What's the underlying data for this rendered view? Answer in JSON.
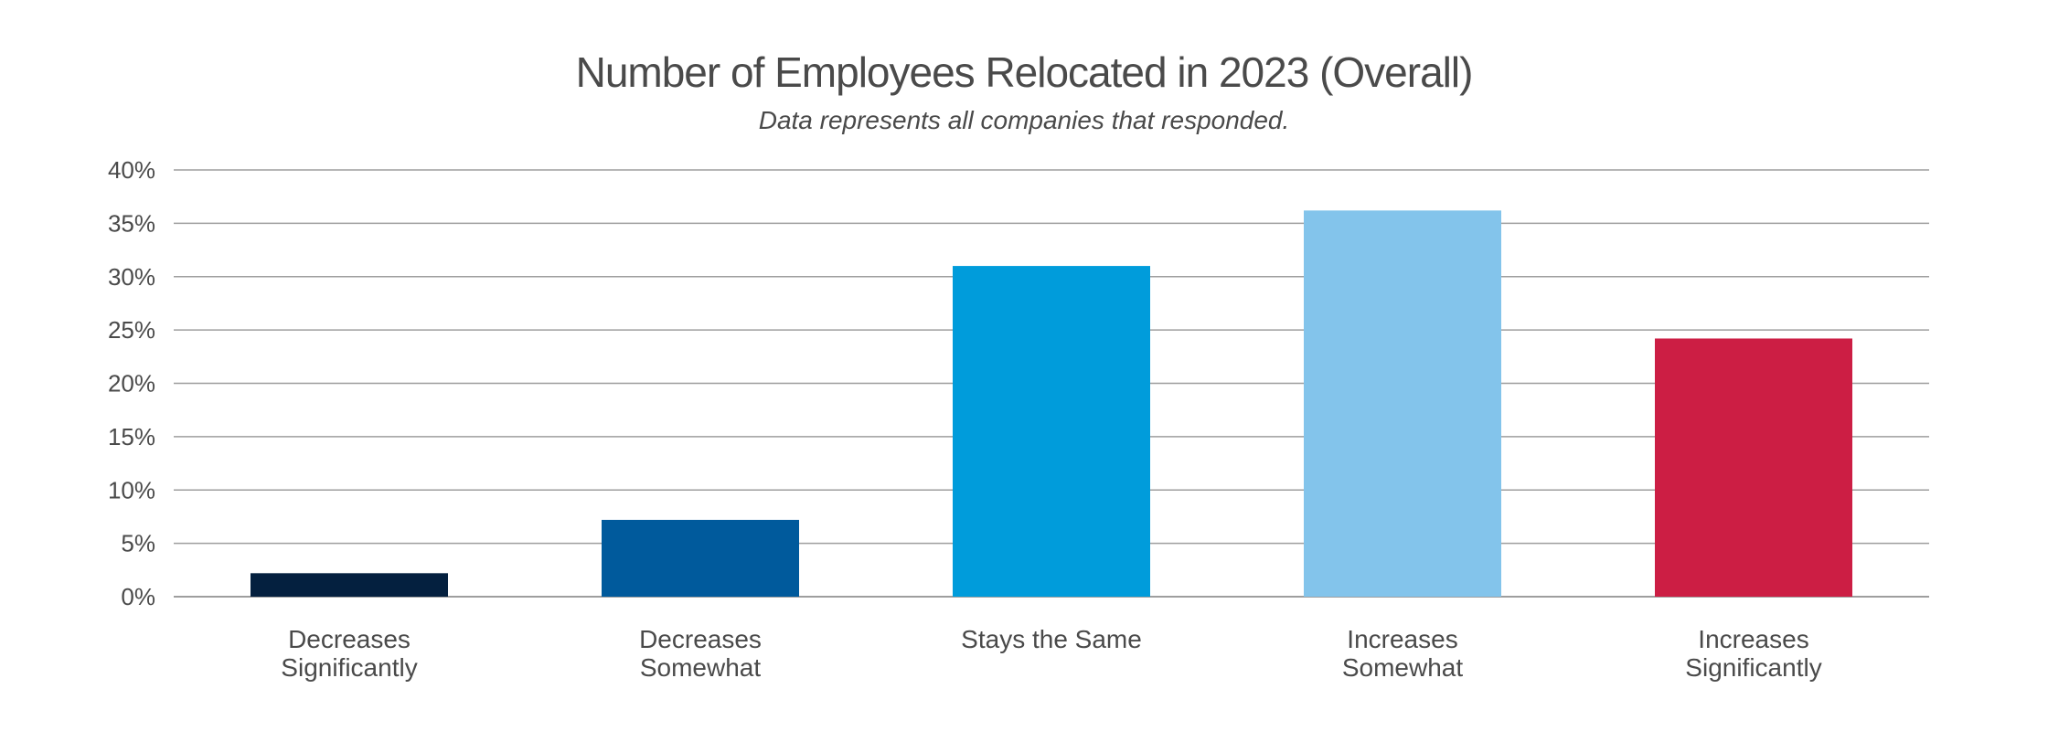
{
  "chart_data": {
    "type": "bar",
    "title": "Number of Employees Relocated in 2023 (Overall)",
    "subtitle": "Data represents all companies that responded.",
    "xlabel": "",
    "ylabel": "",
    "ylim": [
      0,
      40
    ],
    "yticks": [
      "0%",
      "5%",
      "10%",
      "15%",
      "20%",
      "25%",
      "30%",
      "35%",
      "40%"
    ],
    "grid": true,
    "legend": "none",
    "categories": [
      [
        "Decreases",
        "Significantly"
      ],
      [
        "Decreases",
        "Somewhat"
      ],
      [
        "Stays the Same"
      ],
      [
        "Increases",
        "Somewhat"
      ],
      [
        "Increases",
        "Significantly"
      ]
    ],
    "values": [
      2.2,
      7.2,
      31,
      36.2,
      24.2
    ],
    "colors": [
      "#04203f",
      "#005a9c",
      "#009cdb",
      "#83c4eb",
      "#cc1e44"
    ],
    "gridColor": "#9e9e9e"
  }
}
